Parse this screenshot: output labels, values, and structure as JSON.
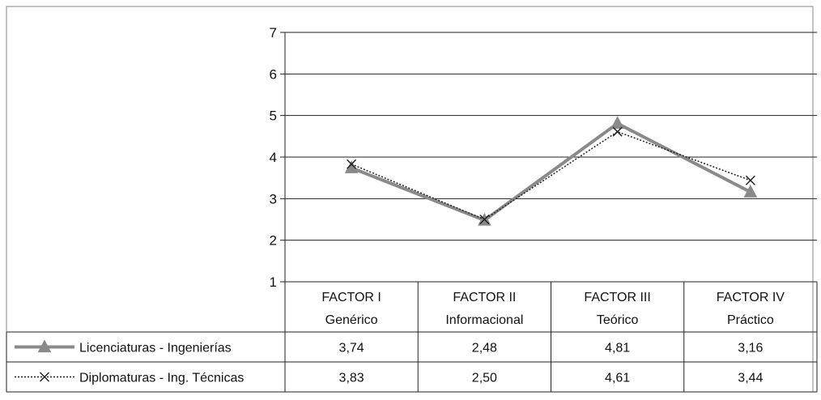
{
  "chart_data": {
    "type": "line",
    "ylim": [
      1,
      7
    ],
    "yticks": [
      "1",
      "2",
      "3",
      "4",
      "5",
      "6",
      "7"
    ],
    "grid": true,
    "categories": [
      {
        "line1": "FACTOR I",
        "line2": "Genérico"
      },
      {
        "line1": "FACTOR II",
        "line2": "Informacional"
      },
      {
        "line1": "FACTOR III",
        "line2": "Teórico"
      },
      {
        "line1": "FACTOR IV",
        "line2": "Práctico"
      }
    ],
    "series": [
      {
        "name": "Licenciaturas - Ingenierías",
        "values": [
          3.74,
          2.48,
          4.81,
          3.16
        ],
        "labels": [
          "3,74",
          "2,48",
          "4,81",
          "3,16"
        ],
        "color": "#8a8a8a",
        "marker": "triangle",
        "line": "solid"
      },
      {
        "name": "Diplomaturas - Ing. Técnicas",
        "values": [
          3.83,
          2.5,
          4.61,
          3.44
        ],
        "labels": [
          "3,83",
          "2,50",
          "4,61",
          "3,44"
        ],
        "color": "#222222",
        "marker": "x",
        "line": "dotted"
      }
    ],
    "legend": "table-rows-below"
  }
}
